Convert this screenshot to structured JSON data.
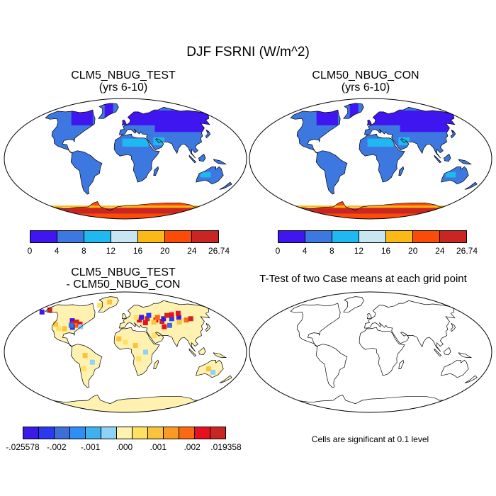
{
  "title": "DJF FSRNI (W/m^2)",
  "panels": {
    "test": {
      "line1": "CLM5_NBUG_TEST",
      "line2": "(yrs 6-10)"
    },
    "con": {
      "line1": "CLM50_NBUG_CON",
      "line2": "(yrs 6-10)"
    },
    "diff": {
      "line1": "CLM5_NBUG_TEST",
      "line2": "- CLM50_NBUG_CON"
    },
    "ttest": {
      "line1": "T-Test of two Case means at each grid point"
    }
  },
  "colorbar_abs": {
    "colors": [
      "#3f16f0",
      "#3d77e0",
      "#1fb8f0",
      "#c8e6f2",
      "#fbb816",
      "#fb4b08",
      "#c92623"
    ],
    "labels": [
      "0",
      "4",
      "8",
      "12",
      "16",
      "20",
      "24",
      "26.74"
    ]
  },
  "colorbar_diff": {
    "colors": [
      "#3b1ae8",
      "#2a39f0",
      "#3d6fd9",
      "#2d8ef5",
      "#3fb0f0",
      "#8fd2f7",
      "#fff2b0",
      "#ffe060",
      "#fbc33a",
      "#fb9a20",
      "#fb6a10",
      "#e8101e",
      "#c92623"
    ],
    "labels": [
      "-.025578",
      "-.002",
      "-.001",
      ".000",
      ".001",
      ".002",
      ".019358"
    ]
  },
  "significance_note": "Cells are significant at 0.1 level",
  "colors": {
    "land_abs": "#3d77e0",
    "land_abs_dark": "#3f16f0",
    "desert_abs": "#1fb8f0",
    "antarctica_abs": "#fb4b08",
    "land_diff": "#fff2b0"
  }
}
